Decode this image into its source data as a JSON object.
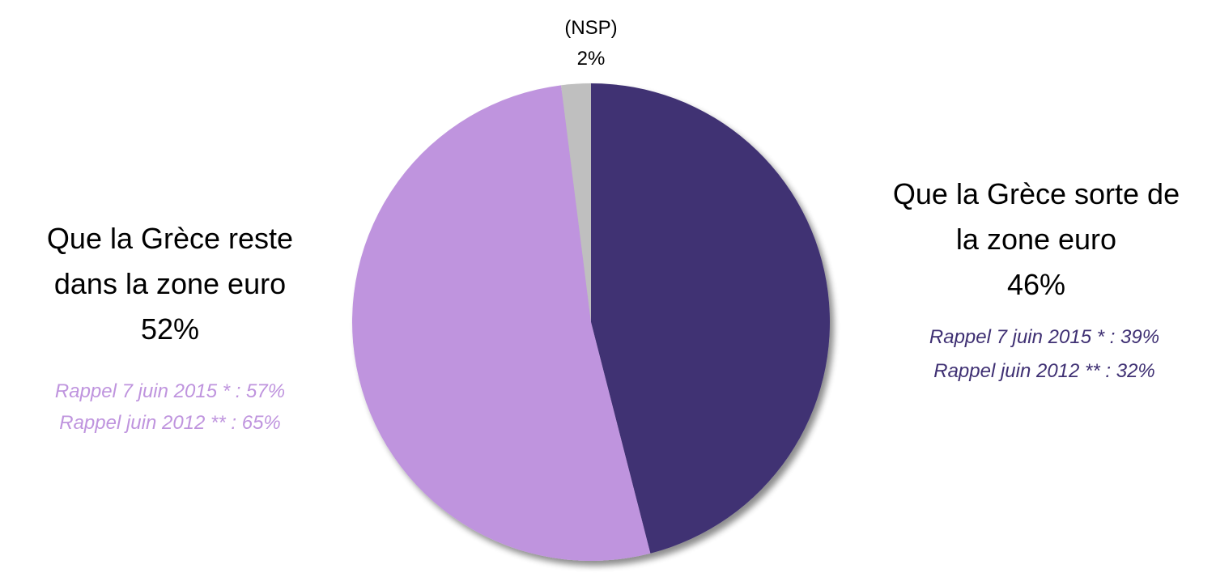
{
  "chart_data": {
    "type": "pie",
    "categories": [
      "Que la Grèce sorte de la zone euro",
      "Que la Grèce reste dans la zone euro",
      "(NSP)"
    ],
    "values": [
      46,
      52,
      2
    ],
    "value_labels": [
      "46%",
      "52%",
      "2%"
    ],
    "colors": [
      "#3f3073",
      "#bf94de",
      "#bfbfbf"
    ],
    "annotations": [
      "Rappel 7 juin 2015 * : 39%",
      "Rappel juin 2012 ** : 32%",
      "Rappel 7 juin 2015 * : 57%",
      "Rappel juin 2012 ** : 65%"
    ]
  }
}
